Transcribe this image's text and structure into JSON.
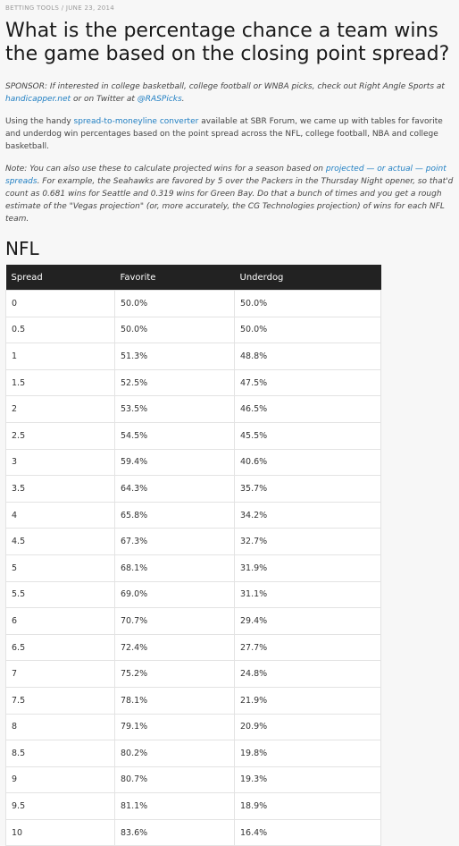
{
  "meta": {
    "category": "BETTING TOOLS",
    "separator": "/",
    "date": "JUNE 23, 2014"
  },
  "title": "What is the percentage chance a team wins the game based on the closing point spread?",
  "sponsor": {
    "text_1": "SPONSOR: If interested in college basketball, college football or WNBA picks, check out Right Angle Sports at ",
    "link_1": "handicapper.net",
    "text_2": " or on Twitter at ",
    "link_2": "@RASPicks",
    "text_3": "."
  },
  "intro": {
    "text_1": "Using the handy ",
    "link": "spread-to-moneyline converter",
    "text_2": " available at SBR Forum, we came up with tables for favorite and underdog win percentages based on the point spread across the NFL, college football, NBA and college basketball."
  },
  "note": {
    "text_1": "Note: You can also use these to calculate projected wins for a season based on ",
    "link": "projected — or actual — point spreads",
    "text_2": ". For example, the Seahawks are favored by 5 over the Packers in the Thursday Night opener, so that'd count as 0.681 wins for Seattle and 0.319 wins for Green Bay. Do that a bunch of times and you get a rough estimate of the \"Vegas projection\" (or, more accurately, the CG Technologies projection) of wins for each NFL team."
  },
  "section_title": "NFL",
  "table": {
    "headers": [
      "Spread",
      "Favorite",
      "Underdog"
    ],
    "rows": [
      [
        "0",
        "50.0%",
        "50.0%"
      ],
      [
        "0.5",
        "50.0%",
        "50.0%"
      ],
      [
        "1",
        "51.3%",
        "48.8%"
      ],
      [
        "1.5",
        "52.5%",
        "47.5%"
      ],
      [
        "2",
        "53.5%",
        "46.5%"
      ],
      [
        "2.5",
        "54.5%",
        "45.5%"
      ],
      [
        "3",
        "59.4%",
        "40.6%"
      ],
      [
        "3.5",
        "64.3%",
        "35.7%"
      ],
      [
        "4",
        "65.8%",
        "34.2%"
      ],
      [
        "4.5",
        "67.3%",
        "32.7%"
      ],
      [
        "5",
        "68.1%",
        "31.9%"
      ],
      [
        "5.5",
        "69.0%",
        "31.1%"
      ],
      [
        "6",
        "70.7%",
        "29.4%"
      ],
      [
        "6.5",
        "72.4%",
        "27.7%"
      ],
      [
        "7",
        "75.2%",
        "24.8%"
      ],
      [
        "7.5",
        "78.1%",
        "21.9%"
      ],
      [
        "8",
        "79.1%",
        "20.9%"
      ],
      [
        "8.5",
        "80.2%",
        "19.8%"
      ],
      [
        "9",
        "80.7%",
        "19.3%"
      ],
      [
        "9.5",
        "81.1%",
        "18.9%"
      ],
      [
        "10",
        "83.6%",
        "16.4%"
      ]
    ]
  }
}
